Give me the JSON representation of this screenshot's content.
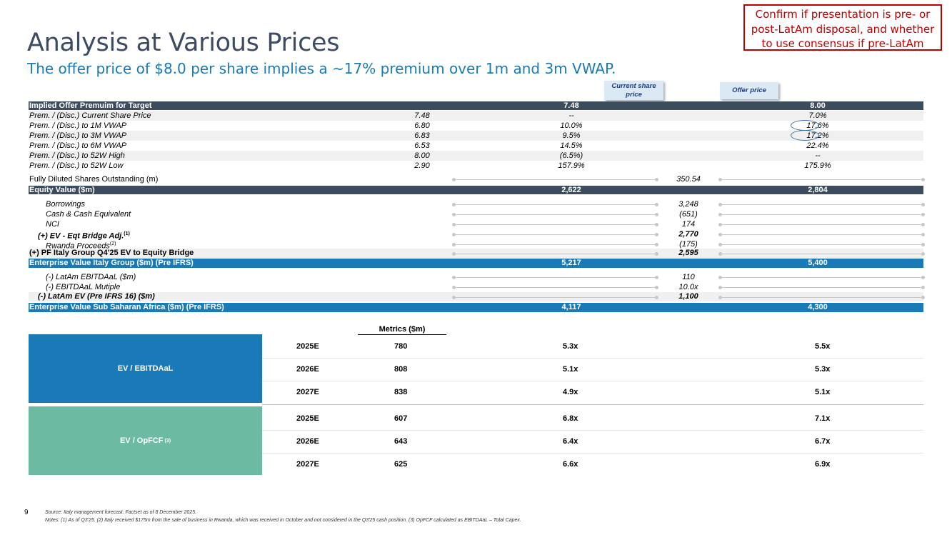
{
  "title": "Analysis at Various Prices",
  "subtitle": "The offer price of $8.0 per share implies a ~17% premium over 1m and 3m VWAP.",
  "confirm_note": "Confirm if presentation is pre- or post-LatAm disposal, and whether to use consensus if pre-LatAm",
  "callouts": {
    "current": "Current share price",
    "offer": "Offer price"
  },
  "premium_table": {
    "header": {
      "label": "Implied Offer Premuim for Target",
      "col2": "7.48",
      "col3": "8.00"
    },
    "rows": [
      {
        "label": "Prem. / (Disc.) Current Share Price",
        "ref": "7.48",
        "col2": "--",
        "col3": "7.0%"
      },
      {
        "label": "Prem. / (Disc.) to 1M VWAP",
        "ref": "6.80",
        "col2": "10.0%",
        "col3": "17.6%"
      },
      {
        "label": "Prem. / (Disc.) to 3M VWAP",
        "ref": "6.83",
        "col2": "9.5%",
        "col3": "17.2%"
      },
      {
        "label": "Prem. / (Disc.) to 6M VWAP",
        "ref": "6.53",
        "col2": "14.5%",
        "col3": "22.4%"
      },
      {
        "label": "Prem. / (Disc.) to 52W High",
        "ref": "8.00",
        "col2": "(6.5%)",
        "col3": "--"
      },
      {
        "label": "Prem. / (Disc.) to 52W Low",
        "ref": "2.90",
        "col2": "157.9%",
        "col3": "175.9%"
      }
    ]
  },
  "shares": {
    "label": "Fully Diluted Shares Outstanding (m)",
    "value": "350.54"
  },
  "equity_value": {
    "label": "Equity Value ($m)",
    "col2": "2,622",
    "col3": "2,804"
  },
  "bridge": [
    {
      "label": "Borrowings",
      "sup": "",
      "value": "3,248"
    },
    {
      "label": "Cash & Cash Equivalent",
      "sup": "",
      "value": "(651)"
    },
    {
      "label": "NCI",
      "sup": "",
      "value": "174"
    },
    {
      "label": "(+) EV - Eqt Bridge Adj.",
      "sup": "(1)",
      "value": "2,770"
    },
    {
      "label": "Rwanda Proceeds",
      "sup": "(2)",
      "value": "(175)"
    }
  ],
  "pf_bridge": {
    "label": "(+) PF Italy Group Q4'25 EV to Equity Bridge",
    "value": "2,595"
  },
  "ev_italy": {
    "label": "Enterprise Value Italy Group ($m) (Pre IFRS)",
    "col2": "5,217",
    "col3": "5,400"
  },
  "latam": [
    {
      "label": "(-) LatAm EBITDAaL ($m)",
      "value": "110"
    },
    {
      "label": "(-) EBITDAaL Mutiple",
      "value": "10.0x"
    }
  ],
  "latam_ev": {
    "label": "(-) LatAm EV (Pre IFRS 16) ($m)",
    "value": "1,100"
  },
  "ev_ssa": {
    "label": "Enterprise Value Sub Saharan Africa ($m) (Pre IFRS)",
    "col2": "4,117",
    "col3": "4,300"
  },
  "metrics_header": "Metrics ($m)",
  "multiples": [
    {
      "name": "EV / EBITDAaL",
      "sup": "",
      "rows": [
        {
          "year": "2025E",
          "metric": "780",
          "col2": "5.3x",
          "col3": "5.5x"
        },
        {
          "year": "2026E",
          "metric": "808",
          "col2": "5.1x",
          "col3": "5.3x"
        },
        {
          "year": "2027E",
          "metric": "838",
          "col2": "4.9x",
          "col3": "5.1x"
        }
      ]
    },
    {
      "name": "EV / OpFCF",
      "sup": "(3)",
      "rows": [
        {
          "year": "2025E",
          "metric": "607",
          "col2": "6.8x",
          "col3": "7.1x"
        },
        {
          "year": "2026E",
          "metric": "643",
          "col2": "6.4x",
          "col3": "6.7x"
        },
        {
          "year": "2027E",
          "metric": "625",
          "col2": "6.6x",
          "col3": "6.9x"
        }
      ]
    }
  ],
  "page_number": "9",
  "source": "Source: Italy management forecast. Factset as of 8 December 2025.",
  "notes": "Notes: (1) As of Q3'25. (2) Italy received $175m from the sale of business in Rwanda, which was received in October and not considered in the Q3'25 cash position. (3) OpFCF calculated as EBITDAaL – Total Capex."
}
